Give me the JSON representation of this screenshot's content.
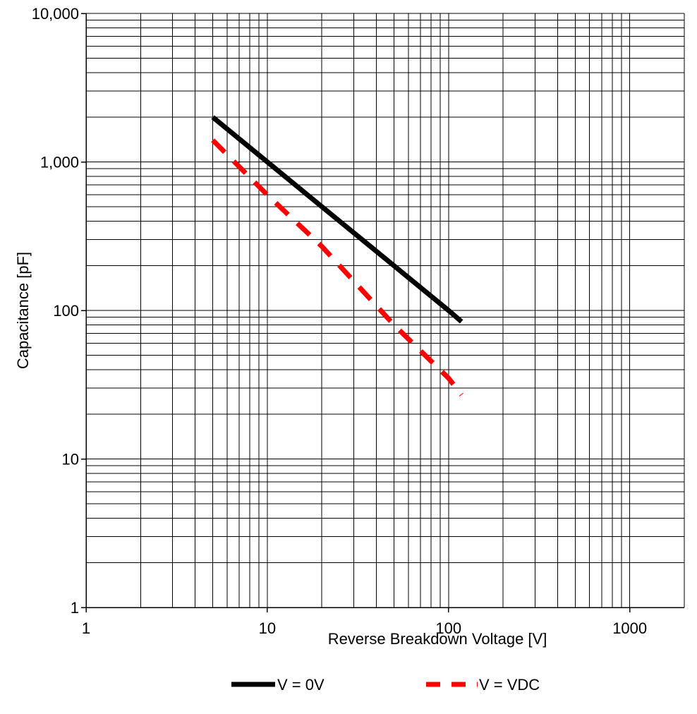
{
  "chart_data": {
    "type": "line",
    "xlabel": "Reverse Breakdown Voltage [V]",
    "ylabel": "Capacitance [pF]",
    "x_scale": "log",
    "y_scale": "log",
    "xlim": [
      1,
      2000
    ],
    "ylim": [
      1,
      10000
    ],
    "x_ticks": [
      1,
      10,
      100,
      1000
    ],
    "x_tick_labels": [
      "1",
      "10",
      "100",
      "1000"
    ],
    "y_ticks": [
      1,
      10,
      100,
      1000,
      10000
    ],
    "y_tick_labels": [
      "1",
      "10",
      "100",
      "1,000",
      "10,000"
    ],
    "grid": true,
    "legend_position": "bottom",
    "series": [
      {
        "name": "V = 0V",
        "color": "#000000",
        "style": "solid",
        "x": [
          5,
          10,
          20,
          50,
          100,
          118
        ],
        "y": [
          2000,
          1000,
          500,
          200,
          100,
          84
        ]
      },
      {
        "name": "V = VDC",
        "color": "#ff0000",
        "style": "dashed",
        "x": [
          5,
          10,
          20,
          50,
          100,
          118
        ],
        "y": [
          1400,
          600,
          270,
          80,
          35,
          27
        ]
      }
    ]
  }
}
